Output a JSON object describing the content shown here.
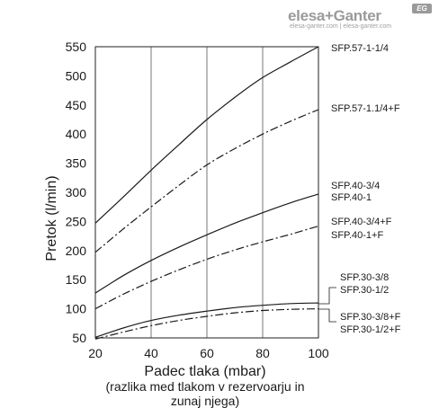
{
  "brand": {
    "name": "elesa+Ganter",
    "url": "elesa-ganter.com | elesa-ganter.com",
    "badge": "EG"
  },
  "chart_data": {
    "type": "line",
    "xlabel": "Padec tlaka (mbar)",
    "xlabel_note": [
      "(razlika med tlakom v rezervoarju in",
      "zunaj njega)"
    ],
    "ylabel": "Pretok (l/min)",
    "xlim": [
      20,
      100
    ],
    "ylim": [
      50,
      550
    ],
    "x_ticks": [
      20,
      40,
      60,
      80,
      100
    ],
    "y_ticks": [
      50,
      100,
      150,
      200,
      250,
      300,
      350,
      400,
      450,
      500,
      550
    ],
    "grid": "vertical",
    "series": [
      {
        "name": "SFP.57-1-1/4",
        "labels": [
          "SFP.57-1-1/4"
        ],
        "style": "solid",
        "x": [
          20,
          30,
          40,
          50,
          60,
          70,
          80,
          90,
          100
        ],
        "y": [
          247,
          292,
          338,
          382,
          425,
          463,
          497,
          524,
          550
        ]
      },
      {
        "name": "SFP.57-1.1/4+F",
        "labels": [
          "SFP.57-1.1/4+F"
        ],
        "style": "dashdot",
        "x": [
          20,
          30,
          40,
          50,
          60,
          70,
          80,
          90,
          100
        ],
        "y": [
          197,
          237,
          275,
          312,
          347,
          375,
          400,
          422,
          442
        ]
      },
      {
        "name": "SFP.40-3/4 / SFP.40-1",
        "labels": [
          "SFP.40-3/4",
          "SFP.40-1"
        ],
        "style": "solid",
        "x": [
          20,
          30,
          40,
          50,
          60,
          70,
          80,
          90,
          100
        ],
        "y": [
          127,
          157,
          183,
          206,
          227,
          247,
          265,
          282,
          297
        ]
      },
      {
        "name": "SFP.40-3/4+F / SFP.40-1+F",
        "labels": [
          "SFP.40-3/4+F",
          "SFP.40-1+F"
        ],
        "style": "dashdot",
        "x": [
          20,
          30,
          40,
          50,
          60,
          70,
          80,
          90,
          100
        ],
        "y": [
          100,
          125,
          147,
          167,
          185,
          201,
          215,
          228,
          242
        ]
      },
      {
        "name": "SFP.30-3/8 / SFP.30-1/2",
        "labels": [
          "SFP.30-3/8",
          "SFP.30-1/2"
        ],
        "style": "solid",
        "x": [
          20,
          30,
          40,
          50,
          60,
          70,
          80,
          90,
          100
        ],
        "y": [
          51,
          67,
          80,
          89,
          96,
          102,
          106,
          109,
          110
        ]
      },
      {
        "name": "SFP.30-3/8+F / SFP.30-1/2+F",
        "labels": [
          "SFP.30-3/8+F",
          "SFP.30-1/2+F"
        ],
        "style": "dashdot",
        "x": [
          20,
          30,
          40,
          50,
          60,
          70,
          80,
          90,
          100
        ],
        "y": [
          48,
          60,
          71,
          80,
          87,
          93,
          97,
          99,
          100
        ]
      }
    ]
  }
}
